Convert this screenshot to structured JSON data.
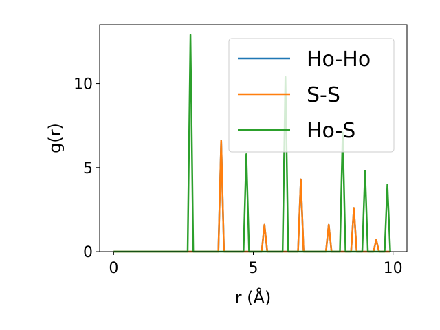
{
  "chart_data": {
    "type": "line",
    "xlabel": "r (Å)",
    "ylabel": "g(r)",
    "xlim": [
      -0.5,
      10.5
    ],
    "ylim": [
      0,
      13.5
    ],
    "xticks": [
      0,
      5,
      10
    ],
    "yticks": [
      0,
      5,
      10
    ],
    "grid": false,
    "legend_position": "top-right",
    "series": [
      {
        "name": "Ho-Ho",
        "color": "#1f77b4",
        "peaks": [
          [
            3.85,
            6.6
          ],
          [
            5.4,
            1.6
          ],
          [
            6.7,
            4.3
          ],
          [
            7.7,
            1.6
          ],
          [
            8.6,
            2.6
          ],
          [
            9.4,
            0.7
          ]
        ]
      },
      {
        "name": "S-S",
        "color": "#ff7f0e",
        "peaks": [
          [
            3.85,
            6.6
          ],
          [
            5.4,
            1.6
          ],
          [
            6.7,
            4.3
          ],
          [
            7.7,
            1.6
          ],
          [
            8.6,
            2.6
          ],
          [
            9.4,
            0.7
          ]
        ]
      },
      {
        "name": "Ho-S",
        "color": "#2ca02c",
        "peaks": [
          [
            2.75,
            12.9
          ],
          [
            4.75,
            5.8
          ],
          [
            6.15,
            10.4
          ],
          [
            8.2,
            7.1
          ],
          [
            9.0,
            4.8
          ],
          [
            9.8,
            4.0
          ]
        ]
      }
    ]
  }
}
